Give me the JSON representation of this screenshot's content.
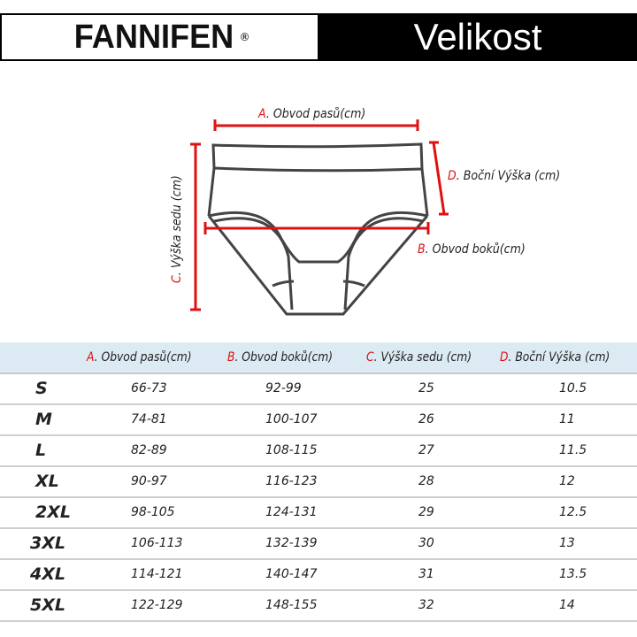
{
  "brand": {
    "logo": "FANNIFEN",
    "registered": "®"
  },
  "title": "Velikost",
  "diagram": {
    "a": {
      "letter": "A",
      "label": ". Obvod pasů(cm)"
    },
    "b": {
      "letter": "B",
      "label": ".  Obvod boků(cm)"
    },
    "c": {
      "letter": "C",
      "label": ". Výška sedu (cm)"
    },
    "d": {
      "letter": "D",
      "label": ". Boční Výška (cm)"
    }
  },
  "colors": {
    "accent": "#e01010",
    "header_bg": "#000000",
    "table_header_bg": "#dceaf3"
  },
  "table": {
    "headers": [
      {
        "letter": "A",
        "label": ". Obvod pasů(cm)"
      },
      {
        "letter": "B",
        "label": ".  Obvod boků(cm)"
      },
      {
        "letter": "C",
        "label": ". Výška sedu (cm)"
      },
      {
        "letter": "D",
        "label": ". Boční Výška (cm)"
      }
    ],
    "rows": [
      {
        "size": "S",
        "a": "66-73",
        "b": "92-99",
        "c": "25",
        "d": "10.5"
      },
      {
        "size": "M",
        "a": "74-81",
        "b": "100-107",
        "c": "26",
        "d": "11"
      },
      {
        "size": "L",
        "a": "82-89",
        "b": "108-115",
        "c": "27",
        "d": "11.5"
      },
      {
        "size": "XL",
        "a": "90-97",
        "b": "116-123",
        "c": "28",
        "d": "12"
      },
      {
        "size": "2XL",
        "a": "98-105",
        "b": "124-131",
        "c": "29",
        "d": "12.5"
      },
      {
        "size": "3XL",
        "a": "106-113",
        "b": "132-139",
        "c": "30",
        "d": "13"
      },
      {
        "size": "4XL",
        "a": "114-121",
        "b": "140-147",
        "c": "31",
        "d": "13.5"
      },
      {
        "size": "5XL",
        "a": "122-129",
        "b": "148-155",
        "c": "32",
        "d": "14"
      }
    ]
  }
}
